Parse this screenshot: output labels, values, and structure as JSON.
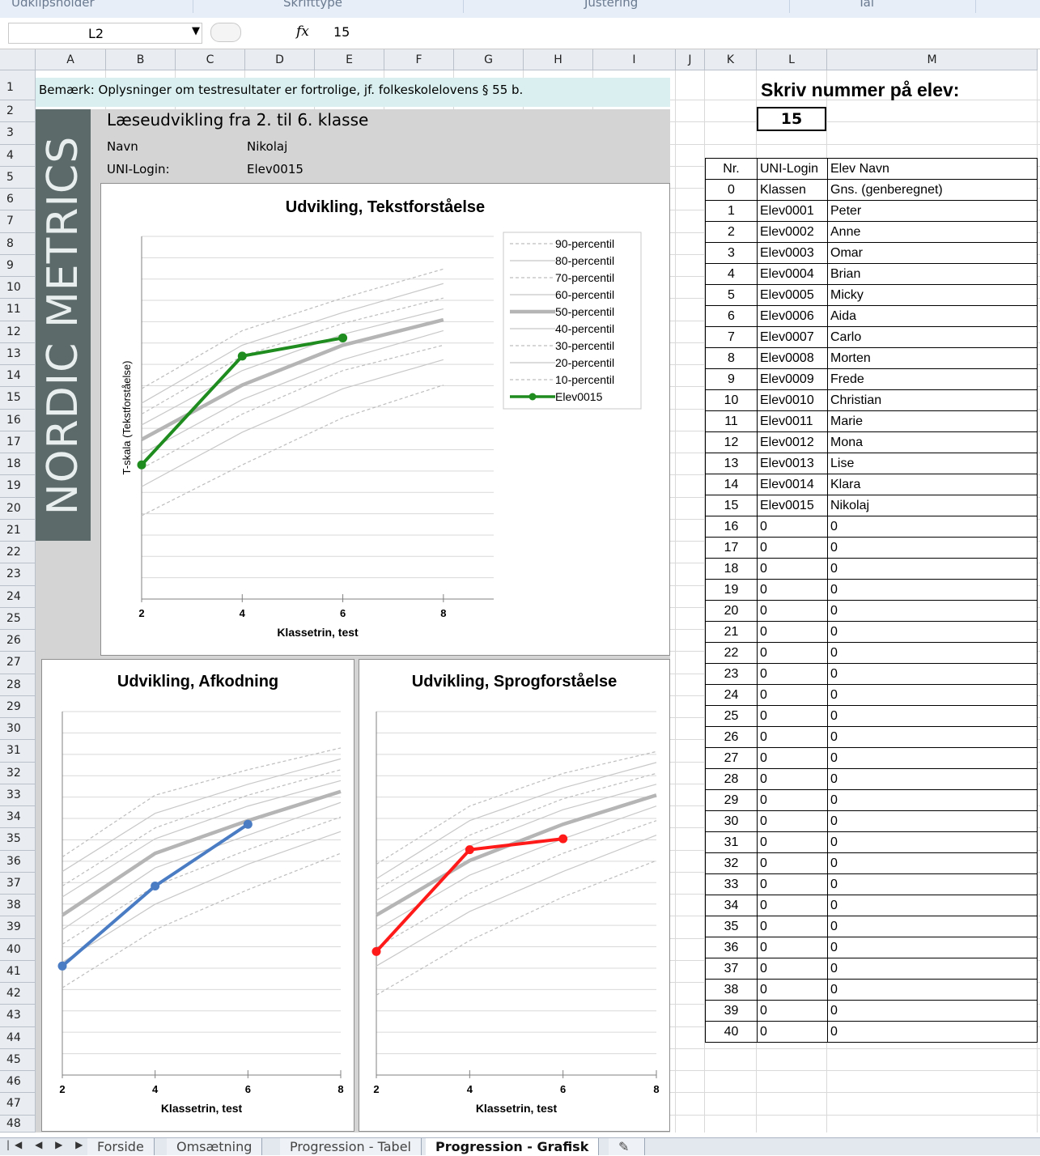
{
  "ribbon": {
    "groups": [
      "Udklipsholder",
      "Skrifttype",
      "Justering",
      "Tal"
    ]
  },
  "formula_bar": {
    "cell_ref": "L2",
    "fx_icon": "fx",
    "value": "15"
  },
  "columns": [
    "A",
    "B",
    "C",
    "D",
    "E",
    "F",
    "G",
    "H",
    "I",
    "J",
    "K",
    "L",
    "M"
  ],
  "rows": [
    "1",
    "2",
    "3",
    "4",
    "5",
    "6",
    "7",
    "8",
    "9",
    "10",
    "11",
    "12",
    "13",
    "14",
    "15",
    "16",
    "17",
    "18",
    "19",
    "20",
    "21",
    "22",
    "23",
    "24",
    "25",
    "26",
    "27",
    "28",
    "29",
    "30",
    "31",
    "32",
    "33",
    "34",
    "35",
    "36",
    "37",
    "38",
    "39",
    "40",
    "41",
    "42",
    "43",
    "44",
    "45",
    "46",
    "47",
    "48"
  ],
  "sheet": {
    "note": "Bemærk: Oplysninger om testresultater er fortrolige, jf. folkeskolelovens § 55 b.",
    "logo_text": "NORDIC METRICS",
    "heading": "Læseudvikling fra 2. til 6. klasse",
    "name_label": "Navn",
    "name_value": "Nikolaj",
    "uni_label": "UNI-Login:",
    "uni_value": "Elev0015",
    "prompt": "Skriv  nummer på elev:",
    "selected_number": "15"
  },
  "student_table": {
    "headers": [
      "Nr.",
      "UNI-Login",
      "Elev Navn"
    ],
    "rows": [
      [
        "0",
        "Klassen",
        "Gns. (genberegnet)"
      ],
      [
        "1",
        "Elev0001",
        "Peter"
      ],
      [
        "2",
        "Elev0002",
        "Anne"
      ],
      [
        "3",
        "Elev0003",
        "Omar"
      ],
      [
        "4",
        "Elev0004",
        "Brian"
      ],
      [
        "5",
        "Elev0005",
        "Micky"
      ],
      [
        "6",
        "Elev0006",
        "Aida"
      ],
      [
        "7",
        "Elev0007",
        "Carlo"
      ],
      [
        "8",
        "Elev0008",
        "Morten"
      ],
      [
        "9",
        "Elev0009",
        "Frede"
      ],
      [
        "10",
        "Elev0010",
        "Christian"
      ],
      [
        "11",
        "Elev0011",
        "Marie"
      ],
      [
        "12",
        "Elev0012",
        "Mona"
      ],
      [
        "13",
        "Elev0013",
        "Lise"
      ],
      [
        "14",
        "Elev0014",
        "Klara"
      ],
      [
        "15",
        "Elev0015",
        "Nikolaj"
      ],
      [
        "16",
        "0",
        "0"
      ],
      [
        "17",
        "0",
        "0"
      ],
      [
        "18",
        "0",
        "0"
      ],
      [
        "19",
        "0",
        "0"
      ],
      [
        "20",
        "0",
        "0"
      ],
      [
        "21",
        "0",
        "0"
      ],
      [
        "22",
        "0",
        "0"
      ],
      [
        "23",
        "0",
        "0"
      ],
      [
        "24",
        "0",
        "0"
      ],
      [
        "25",
        "0",
        "0"
      ],
      [
        "26",
        "0",
        "0"
      ],
      [
        "27",
        "0",
        "0"
      ],
      [
        "28",
        "0",
        "0"
      ],
      [
        "29",
        "0",
        "0"
      ],
      [
        "30",
        "0",
        "0"
      ],
      [
        "31",
        "0",
        "0"
      ],
      [
        "32",
        "0",
        "0"
      ],
      [
        "33",
        "0",
        "0"
      ],
      [
        "34",
        "0",
        "0"
      ],
      [
        "35",
        "0",
        "0"
      ],
      [
        "36",
        "0",
        "0"
      ],
      [
        "37",
        "0",
        "0"
      ],
      [
        "38",
        "0",
        "0"
      ],
      [
        "39",
        "0",
        "0"
      ],
      [
        "40",
        "0",
        "0"
      ]
    ]
  },
  "tabs": [
    {
      "label": "Forside",
      "active": false
    },
    {
      "label": "Omsætning",
      "active": false
    },
    {
      "label": "Progression - Tabel",
      "active": false
    },
    {
      "label": "Progression - Grafisk",
      "active": true
    }
  ],
  "chart_data": [
    {
      "type": "line",
      "title": "Udvikling, Tekstforståelse",
      "xlabel": "Klassetrin, test",
      "ylabel": "T-skala  (Tekstforståelse)",
      "x": [
        2,
        4,
        6,
        8
      ],
      "xlim": [
        2,
        9
      ],
      "ylim": [
        0,
        100
      ],
      "grid": true,
      "legend": "right",
      "student_color": "#1e8c1e",
      "percentiles": [
        {
          "name": "90-percentil",
          "style": "dashed",
          "values": [
            58,
            74,
            83,
            91
          ]
        },
        {
          "name": "80-percentil",
          "style": "solid",
          "values": [
            54,
            70,
            79,
            87
          ]
        },
        {
          "name": "70-percentil",
          "style": "dashed",
          "values": [
            51,
            67,
            76,
            83
          ]
        },
        {
          "name": "60-percentil",
          "style": "solid",
          "values": [
            48,
            63,
            73,
            80
          ]
        },
        {
          "name": "50-percentil",
          "style": "thick",
          "values": [
            44,
            59,
            70,
            77
          ]
        },
        {
          "name": "40-percentil",
          "style": "solid",
          "values": [
            40,
            55,
            66,
            74
          ]
        },
        {
          "name": "30-percentil",
          "style": "dashed",
          "values": [
            36,
            51,
            63,
            70
          ]
        },
        {
          "name": "20-percentil",
          "style": "solid",
          "values": [
            31,
            46,
            58,
            66
          ]
        },
        {
          "name": "10-percentil",
          "style": "dashed",
          "values": [
            23,
            37,
            50,
            59
          ]
        }
      ],
      "student": {
        "name": "Elev0015",
        "values": [
          37,
          67,
          72
        ]
      }
    },
    {
      "type": "line",
      "title": "Udvikling, Afkodning",
      "xlabel": "Klassetrin, test",
      "x": [
        2,
        4,
        6,
        8
      ],
      "xlim": [
        2,
        8
      ],
      "ylim": [
        0,
        100
      ],
      "grid": true,
      "student_color": "#4a7cc4",
      "percentiles": [
        {
          "name": "90-percentil",
          "style": "dashed",
          "values": [
            60,
            77,
            84,
            90
          ]
        },
        {
          "name": "80-percentil",
          "style": "solid",
          "values": [
            56,
            72,
            80,
            87
          ]
        },
        {
          "name": "70-percentil",
          "style": "dashed",
          "values": [
            52,
            68,
            77,
            84
          ]
        },
        {
          "name": "60-percentil",
          "style": "solid",
          "values": [
            49,
            65,
            74,
            81
          ]
        },
        {
          "name": "50-percentil",
          "style": "thick",
          "values": [
            44,
            61,
            70,
            78
          ]
        },
        {
          "name": "40-percentil",
          "style": "solid",
          "values": [
            40,
            57,
            66,
            75
          ]
        },
        {
          "name": "30-percentil",
          "style": "dashed",
          "values": [
            36,
            52,
            62,
            71
          ]
        },
        {
          "name": "20-percentil",
          "style": "solid",
          "values": [
            31,
            47,
            58,
            67
          ]
        },
        {
          "name": "10-percentil",
          "style": "dashed",
          "values": [
            24,
            40,
            51,
            61
          ]
        }
      ],
      "student": {
        "name": "Elev0015",
        "values": [
          30,
          52,
          69
        ]
      }
    },
    {
      "type": "line",
      "title": "Udvikling, Sprogforståelse",
      "xlabel": "Klassetrin, test",
      "x": [
        2,
        4,
        6,
        8
      ],
      "xlim": [
        2,
        8
      ],
      "ylim": [
        0,
        100
      ],
      "grid": true,
      "student_color": "#ff1a1a",
      "percentiles": [
        {
          "name": "90-percentil",
          "style": "dashed",
          "values": [
            58,
            74,
            83,
            89
          ]
        },
        {
          "name": "80-percentil",
          "style": "solid",
          "values": [
            54,
            70,
            79,
            86
          ]
        },
        {
          "name": "70-percentil",
          "style": "dashed",
          "values": [
            51,
            66,
            76,
            83
          ]
        },
        {
          "name": "60-percentil",
          "style": "solid",
          "values": [
            48,
            63,
            73,
            80
          ]
        },
        {
          "name": "50-percentil",
          "style": "thick",
          "values": [
            44,
            59,
            69,
            77
          ]
        },
        {
          "name": "40-percentil",
          "style": "solid",
          "values": [
            40,
            55,
            65,
            74
          ]
        },
        {
          "name": "30-percentil",
          "style": "dashed",
          "values": [
            35,
            50,
            61,
            70
          ]
        },
        {
          "name": "20-percentil",
          "style": "solid",
          "values": [
            30,
            45,
            56,
            66
          ]
        },
        {
          "name": "10-percentil",
          "style": "dashed",
          "values": [
            22,
            37,
            49,
            59
          ]
        }
      ],
      "student": {
        "name": "Elev0015",
        "values": [
          34,
          62,
          65
        ]
      }
    }
  ]
}
